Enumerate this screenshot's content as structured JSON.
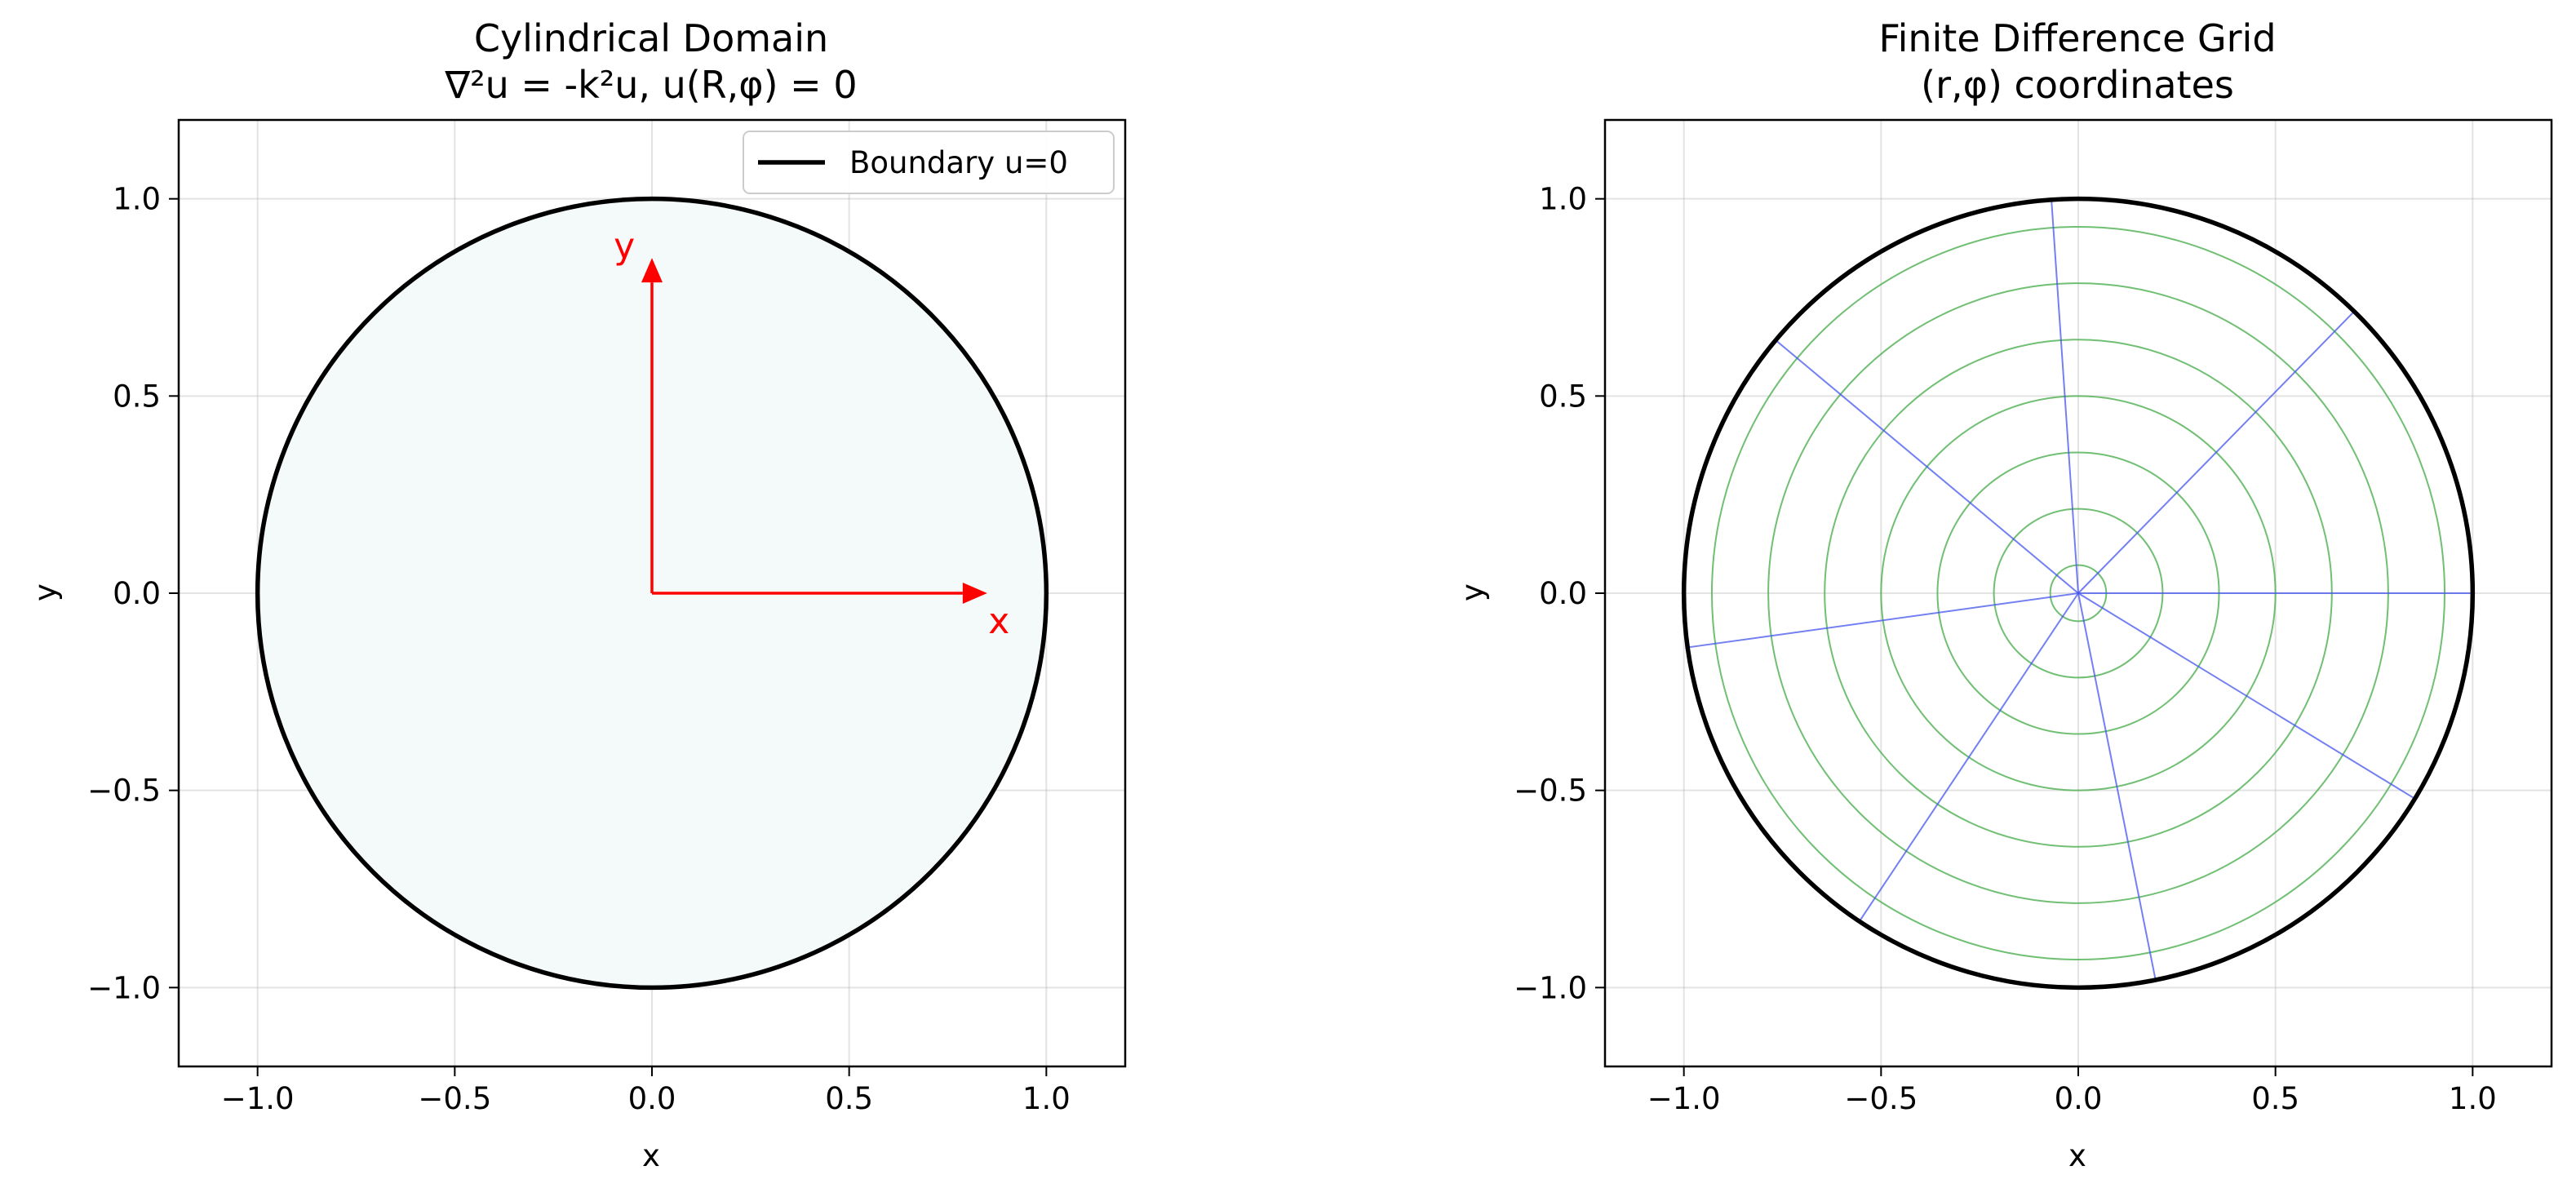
{
  "chart_data": [
    {
      "type": "diagram-plot",
      "title_line1": "Cylindrical Domain",
      "title_line2": "∇²u = -k²u, u(R,φ) = 0",
      "xlabel": "x",
      "ylabel": "y",
      "xlim": [
        -1.2,
        1.2
      ],
      "ylim": [
        -1.2,
        1.2
      ],
      "xticks": [
        -1.0,
        -0.5,
        0.0,
        0.5,
        1.0
      ],
      "yticks": [
        -1.0,
        -0.5,
        0.0,
        0.5,
        1.0
      ],
      "xtick_labels": [
        "−1.0",
        "−0.5",
        "0.0",
        "0.5",
        "1.0"
      ],
      "ytick_labels": [
        "−1.0",
        "−0.5",
        "0.0",
        "0.5",
        "1.0"
      ],
      "grid": true,
      "domain_radius": 1.0,
      "fill_color": "#f4fafa",
      "boundary_color": "#000000",
      "legend": {
        "position": "top-right",
        "entries": [
          {
            "label": "Boundary u=0",
            "color": "#000000"
          }
        ]
      },
      "arrows": [
        {
          "name": "x-axis-arrow",
          "label": "x",
          "from": [
            0,
            0
          ],
          "to": [
            0.85,
            0
          ],
          "label_pos": [
            0.88,
            -0.07
          ],
          "color": "#ff0000"
        },
        {
          "name": "y-axis-arrow",
          "label": "y",
          "from": [
            0,
            0
          ],
          "to": [
            0,
            0.85
          ],
          "label_pos": [
            -0.07,
            0.88
          ],
          "color": "#ff0000"
        }
      ]
    },
    {
      "type": "polar-grid-plot",
      "title_line1": "Finite Difference Grid",
      "title_line2": "(r,φ) coordinates",
      "xlabel": "x",
      "ylabel": "y",
      "xlim": [
        -1.2,
        1.2
      ],
      "ylim": [
        -1.2,
        1.2
      ],
      "xticks": [
        -1.0,
        -0.5,
        0.0,
        0.5,
        1.0
      ],
      "yticks": [
        -1.0,
        -0.5,
        0.0,
        0.5,
        1.0
      ],
      "xtick_labels": [
        "−1.0",
        "−0.5",
        "0.0",
        "0.5",
        "1.0"
      ],
      "ytick_labels": [
        "−1.0",
        "−0.5",
        "0.0",
        "0.5",
        "1.0"
      ],
      "grid": true,
      "boundary_radius": 1.0,
      "boundary_color": "#000000",
      "circle_radii": [
        0.071,
        0.214,
        0.357,
        0.5,
        0.643,
        0.786,
        0.929
      ],
      "circle_color": "#4caf50",
      "ray_angles_deg": [
        0,
        45.6,
        93.9,
        140.1,
        187.9,
        236.3,
        281.3,
        328.6
      ],
      "ray_color": "#4455ee"
    }
  ]
}
